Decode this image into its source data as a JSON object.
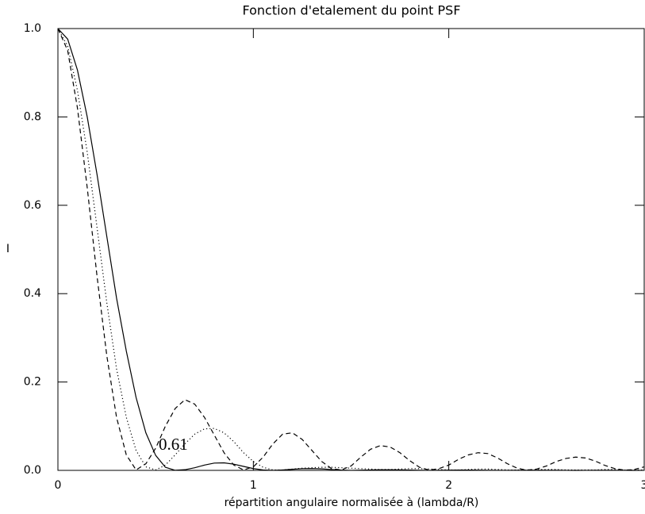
{
  "chart_data": {
    "type": "line",
    "title": "Fonction d'etalement du point PSF",
    "xlabel": "répartition angulaire normalisée à (lambda/R)",
    "ylabel": "I",
    "annotation": "0.61",
    "x": [
      0,
      0.05,
      0.1,
      0.15,
      0.2,
      0.25,
      0.3,
      0.35,
      0.4,
      0.45,
      0.5,
      0.55,
      0.6,
      0.65,
      0.7,
      0.75,
      0.8,
      0.85,
      0.9,
      0.95,
      1,
      1.05,
      1.1,
      1.15,
      1.2,
      1.25,
      1.3,
      1.35,
      1.4,
      1.45,
      1.5,
      1.55,
      1.6,
      1.65,
      1.7,
      1.75,
      1.8,
      1.85,
      1.9,
      1.95,
      2,
      2.05,
      2.1,
      2.15,
      2.2,
      2.25,
      2.3,
      2.35,
      2.4,
      2.45,
      2.5,
      2.55,
      2.6,
      2.65,
      2.7,
      2.75,
      2.8,
      2.85,
      2.9,
      2.95,
      3
    ],
    "series": [
      {
        "color": "#000000",
        "dash": "solid",
        "values": [
          1,
          0.976,
          0.906,
          0.8,
          0.67,
          0.53,
          0.39,
          0.27,
          0.165,
          0.085,
          0.034,
          0.007,
          0.0002,
          0.0015,
          0.006,
          0.012,
          0.0165,
          0.017,
          0.014,
          0.009,
          0.004,
          0.001,
          0.0001,
          0.0009,
          0.0025,
          0.0038,
          0.004,
          0.0033,
          0.0019,
          0.0007,
          0.0001,
          0.0004,
          0.0009,
          0.0013,
          0.0014,
          0.0012,
          0.0008,
          0.0003,
          0.0001,
          0.0002,
          0.0005,
          0.0007,
          0.0007,
          0.0005,
          0.0003,
          0.0001,
          0.0001,
          0.0002,
          0.0003,
          0.0004,
          0.0003,
          0.0002,
          0.0001,
          0,
          0.0001,
          0.0002,
          0.0002,
          0.0002,
          0.0001,
          0,
          0.0001
        ]
      },
      {
        "color": "#000000",
        "dash": "dotted",
        "values": [
          1,
          0.96,
          0.86,
          0.72,
          0.55,
          0.38,
          0.23,
          0.12,
          0.045,
          0.008,
          0.001,
          0.012,
          0.035,
          0.06,
          0.082,
          0.094,
          0.095,
          0.085,
          0.065,
          0.04,
          0.02,
          0.007,
          0.001,
          0.001,
          0.003,
          0.005,
          0.006,
          0.007,
          0.007,
          0.006,
          0.005,
          0.004,
          0.003,
          0.002,
          0.002,
          0.003,
          0.004,
          0.004,
          0.003,
          0.002,
          0.001,
          0.001,
          0.002,
          0.003,
          0.003,
          0.002,
          0.001,
          0.001,
          0.001,
          0.002,
          0.002,
          0.002,
          0.001,
          0.001,
          0.001,
          0.001,
          0.002,
          0.002,
          0.001,
          0.001,
          0.001
        ]
      },
      {
        "color": "#000000",
        "dash": "dashed",
        "values": [
          1,
          0.95,
          0.82,
          0.64,
          0.44,
          0.26,
          0.12,
          0.035,
          0.001,
          0.015,
          0.05,
          0.1,
          0.14,
          0.16,
          0.15,
          0.12,
          0.08,
          0.04,
          0.012,
          0.001,
          0.008,
          0.03,
          0.06,
          0.082,
          0.085,
          0.07,
          0.045,
          0.02,
          0.004,
          0.001,
          0.01,
          0.03,
          0.048,
          0.056,
          0.053,
          0.04,
          0.022,
          0.007,
          0.0005,
          0.004,
          0.012,
          0.025,
          0.035,
          0.04,
          0.038,
          0.028,
          0.015,
          0.005,
          0.0005,
          0.003,
          0.01,
          0.02,
          0.027,
          0.03,
          0.028,
          0.021,
          0.011,
          0.004,
          0.0005,
          0.002,
          0.008
        ]
      }
    ],
    "xlim": [
      0,
      3
    ],
    "xticks": [
      0,
      1,
      2,
      3
    ],
    "ylim": [
      0,
      1
    ],
    "yticks": [
      {
        "value": 0,
        "label": "0.0"
      },
      0.2,
      0.4,
      0.6,
      0.8,
      {
        "value": 1,
        "label": "1.0"
      }
    ],
    "grid": false
  }
}
